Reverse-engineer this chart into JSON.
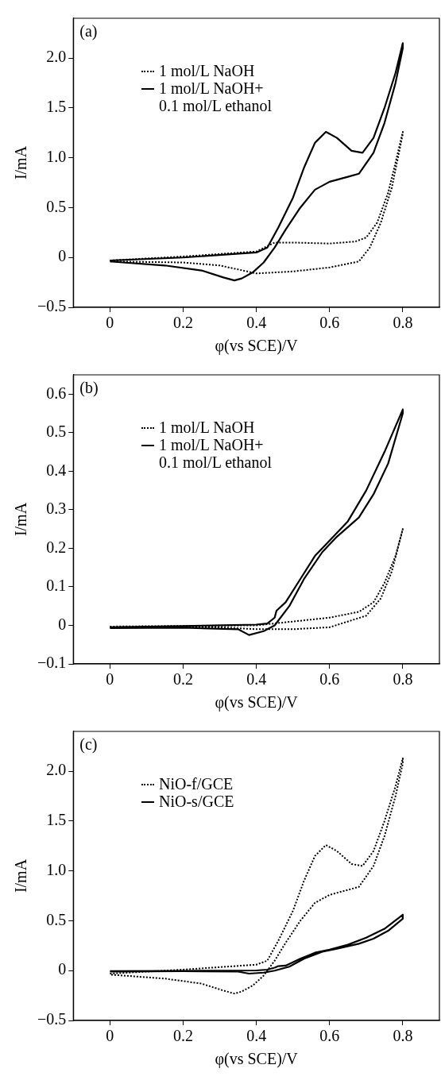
{
  "chart_data": [
    {
      "type": "line",
      "annotations": [
        "(a)"
      ],
      "xlabel": "φ(vs SCE)/V",
      "ylabel": "I/mA",
      "xlim": [
        -0.1,
        0.9
      ],
      "xticks": [
        0,
        0.2,
        0.4,
        0.6,
        0.8
      ],
      "ylim": [
        -0.5,
        2.4
      ],
      "yticks": [
        {
          "value": -0.5,
          "label": "−0.5"
        },
        0,
        0.5,
        {
          "value": 1,
          "label": "1.0"
        },
        1.5,
        {
          "value": 2,
          "label": "2.0"
        }
      ],
      "grid": false,
      "legend": "top left",
      "marker": "none",
      "series": [
        {
          "name": "1 mol/L NaOH",
          "color": "#000000",
          "line_style": "dotted",
          "x": [
            0,
            0.2,
            0.4,
            0.45,
            0.5,
            0.6,
            0.67,
            0.7,
            0.73,
            0.76,
            0.78,
            0.8,
            0.8,
            0.77,
            0.74,
            0.71,
            0.68,
            0.6,
            0.5,
            0.4,
            0.35,
            0.3,
            0.2,
            0
          ],
          "values": [
            -0.03,
            0.01,
            0.06,
            0.15,
            0.15,
            0.14,
            0.16,
            0.2,
            0.35,
            0.65,
            0.95,
            1.26,
            1.24,
            0.7,
            0.35,
            0.1,
            -0.04,
            -0.1,
            -0.14,
            -0.16,
            -0.12,
            -0.08,
            -0.05,
            -0.04
          ]
        },
        {
          "name": "1 mol/L NaOH+ 0.1 mol/L ethanol",
          "color": "#000000",
          "line_style": "solid",
          "x": [
            0,
            0.2,
            0.4,
            0.43,
            0.46,
            0.5,
            0.53,
            0.56,
            0.59,
            0.62,
            0.66,
            0.69,
            0.72,
            0.75,
            0.78,
            0.8,
            0.8,
            0.78,
            0.75,
            0.72,
            0.68,
            0.65,
            0.6,
            0.56,
            0.52,
            0.48,
            0.45,
            0.42,
            0.39,
            0.36,
            0.34,
            0.31,
            0.25,
            0.15,
            0
          ],
          "values": [
            -0.03,
            0,
            0.05,
            0.1,
            0.3,
            0.6,
            0.9,
            1.15,
            1.26,
            1.2,
            1.07,
            1.05,
            1.2,
            1.5,
            1.85,
            2.15,
            2.1,
            1.75,
            1.35,
            1.05,
            0.84,
            0.81,
            0.76,
            0.68,
            0.5,
            0.28,
            0.1,
            -0.05,
            -0.15,
            -0.21,
            -0.23,
            -0.2,
            -0.13,
            -0.08,
            -0.04
          ]
        }
      ]
    },
    {
      "type": "line",
      "annotations": [
        "(b)"
      ],
      "xlabel": "φ(vs SCE)/V",
      "ylabel": "I/mA",
      "xlim": [
        -0.1,
        0.9
      ],
      "xticks": [
        0,
        0.2,
        0.4,
        0.6,
        0.8
      ],
      "ylim": [
        -0.1,
        0.65
      ],
      "yticks": [
        {
          "value": -0.1,
          "label": "−0.1"
        },
        0,
        0.1,
        0.2,
        0.3,
        0.4,
        0.5,
        0.6
      ],
      "grid": false,
      "legend": "top left",
      "marker": "none",
      "series": [
        {
          "name": "1 mol/L NaOH",
          "color": "#000000",
          "line_style": "dotted",
          "x": [
            0,
            0.4,
            0.5,
            0.6,
            0.68,
            0.72,
            0.75,
            0.78,
            0.8,
            0.8,
            0.77,
            0.74,
            0.7,
            0.6,
            0.5,
            0.4,
            0.3,
            0
          ],
          "values": [
            -0.003,
            0,
            0.01,
            0.02,
            0.035,
            0.06,
            0.11,
            0.18,
            0.25,
            0.25,
            0.14,
            0.07,
            0.025,
            -0.005,
            -0.01,
            -0.01,
            -0.005,
            -0.005
          ]
        },
        {
          "name": "1 mol/L NaOH+ 0.1 mol/L ethanol",
          "color": "#000000",
          "line_style": "solid",
          "x": [
            0,
            0.2,
            0.4,
            0.43,
            0.45,
            0.455,
            0.48,
            0.52,
            0.56,
            0.6,
            0.65,
            0.7,
            0.75,
            0.8,
            0.8,
            0.76,
            0.72,
            0.68,
            0.62,
            0.58,
            0.53,
            0.49,
            0.45,
            0.42,
            0.38,
            0.35,
            0.2,
            0
          ],
          "values": [
            -0.005,
            -0.002,
            0.002,
            0.005,
            0.02,
            0.038,
            0.06,
            0.12,
            0.18,
            0.22,
            0.27,
            0.35,
            0.45,
            0.56,
            0.55,
            0.42,
            0.34,
            0.28,
            0.23,
            0.19,
            0.12,
            0.05,
            0,
            -0.015,
            -0.025,
            -0.01,
            -0.006,
            -0.007
          ]
        }
      ]
    },
    {
      "type": "line",
      "annotations": [
        "(c)"
      ],
      "xlabel": "φ(vs SCE)/V",
      "ylabel": "I/mA",
      "xlim": [
        -0.1,
        0.9
      ],
      "xticks": [
        0,
        0.2,
        0.4,
        0.6,
        0.8
      ],
      "ylim": [
        -0.5,
        2.4
      ],
      "yticks": [
        {
          "value": -0.5,
          "label": "−0.5"
        },
        0,
        0.5,
        {
          "value": 1,
          "label": "1.0"
        },
        1.5,
        {
          "value": 2,
          "label": "2.0"
        }
      ],
      "grid": false,
      "legend": "top left",
      "marker": "none",
      "series": [
        {
          "name": "NiO-f/GCE",
          "color": "#000000",
          "line_style": "dotted",
          "x": [
            0,
            0.2,
            0.4,
            0.43,
            0.46,
            0.5,
            0.53,
            0.56,
            0.59,
            0.62,
            0.66,
            0.69,
            0.72,
            0.75,
            0.78,
            0.8,
            0.8,
            0.78,
            0.75,
            0.72,
            0.68,
            0.65,
            0.6,
            0.56,
            0.52,
            0.48,
            0.45,
            0.42,
            0.39,
            0.36,
            0.34,
            0.31,
            0.25,
            0.15,
            0
          ],
          "values": [
            -0.03,
            0.01,
            0.06,
            0.1,
            0.3,
            0.6,
            0.9,
            1.15,
            1.26,
            1.2,
            1.07,
            1.05,
            1.2,
            1.5,
            1.85,
            2.13,
            2.08,
            1.75,
            1.35,
            1.05,
            0.84,
            0.81,
            0.76,
            0.68,
            0.5,
            0.28,
            0.1,
            -0.05,
            -0.15,
            -0.21,
            -0.23,
            -0.2,
            -0.13,
            -0.08,
            -0.04
          ]
        },
        {
          "name": "NiO-s/GCE",
          "color": "#000000",
          "line_style": "solid",
          "x": [
            0,
            0.2,
            0.4,
            0.43,
            0.45,
            0.46,
            0.48,
            0.52,
            0.56,
            0.6,
            0.65,
            0.7,
            0.75,
            0.8,
            0.8,
            0.76,
            0.72,
            0.68,
            0.62,
            0.58,
            0.53,
            0.49,
            0.45,
            0.42,
            0.38,
            0.35,
            0.2,
            0
          ],
          "values": [
            -0.005,
            -0.002,
            0.002,
            0.01,
            0.03,
            0.045,
            0.05,
            0.12,
            0.18,
            0.21,
            0.26,
            0.33,
            0.42,
            0.56,
            0.52,
            0.4,
            0.32,
            0.27,
            0.22,
            0.19,
            0.12,
            0.04,
            0,
            -0.02,
            -0.03,
            -0.01,
            -0.006,
            -0.01
          ]
        }
      ]
    }
  ]
}
